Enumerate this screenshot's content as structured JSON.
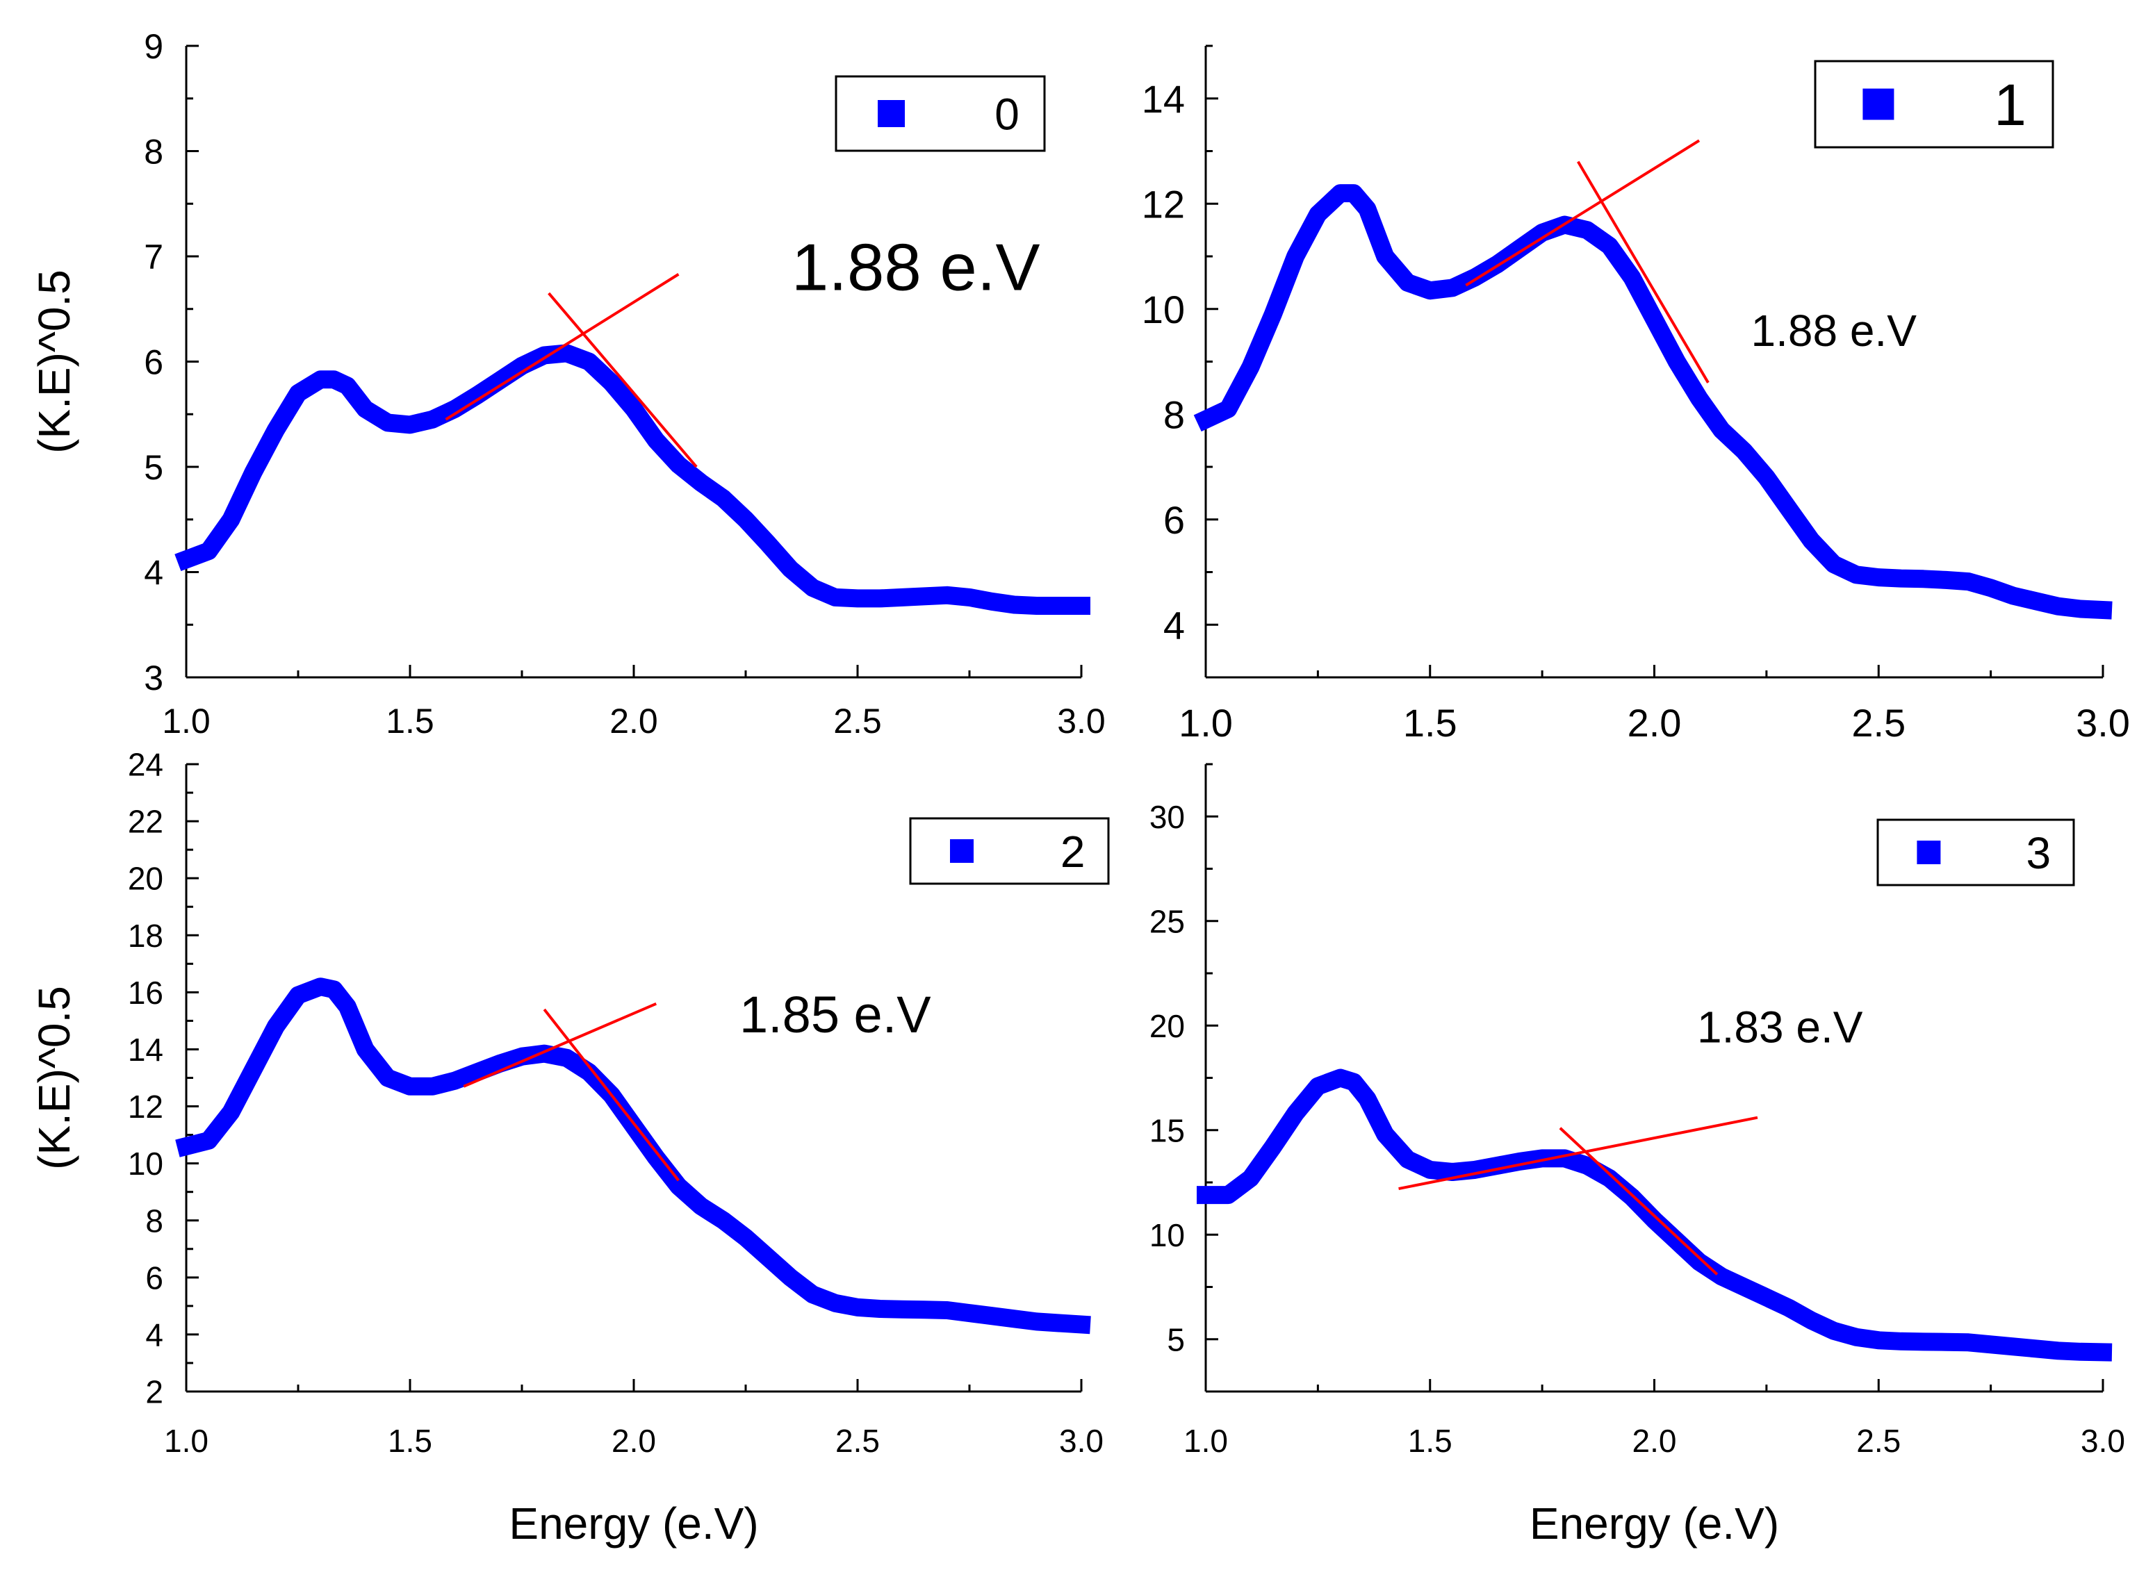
{
  "figure": {
    "colors": {
      "data": "#0000ff",
      "fit": "#ff0000",
      "axis": "#000000",
      "background": "#ffffff"
    },
    "marker_icon": "square-marker-icon"
  },
  "chart_data": [
    {
      "type": "line",
      "title": "",
      "xlabel": "",
      "ylabel": "(K.E)^0.5",
      "xlim": [
        1.0,
        3.0
      ],
      "ylim": [
        3,
        9
      ],
      "xticks": [
        1.0,
        1.5,
        2.0,
        2.5,
        3.0
      ],
      "xtick_labels": [
        "1.0",
        "1.5",
        "2.0",
        "2.5",
        "3.0"
      ],
      "yticks": [
        3,
        4,
        5,
        6,
        7,
        8,
        9
      ],
      "ytick_labels": [
        "3",
        "4",
        "5",
        "6",
        "7",
        "8",
        "9"
      ],
      "legend": {
        "label": "0",
        "position": "top-right"
      },
      "annotation": {
        "text": "1.88 e.V",
        "x": 2.63,
        "y": 6.68
      },
      "series": [
        {
          "name": "0",
          "x": [
            1.0,
            1.05,
            1.1,
            1.15,
            1.2,
            1.25,
            1.3,
            1.33,
            1.36,
            1.4,
            1.45,
            1.5,
            1.55,
            1.6,
            1.65,
            1.7,
            1.75,
            1.8,
            1.85,
            1.9,
            1.95,
            2.0,
            2.05,
            2.1,
            2.15,
            2.2,
            2.25,
            2.3,
            2.35,
            2.4,
            2.45,
            2.5,
            2.55,
            2.6,
            2.65,
            2.7,
            2.75,
            2.8,
            2.85,
            2.9,
            2.95,
            3.0
          ],
          "y": [
            4.12,
            4.2,
            4.5,
            4.95,
            5.35,
            5.7,
            5.83,
            5.83,
            5.77,
            5.55,
            5.42,
            5.4,
            5.45,
            5.55,
            5.68,
            5.82,
            5.96,
            6.06,
            6.08,
            6.0,
            5.8,
            5.55,
            5.25,
            5.02,
            4.85,
            4.7,
            4.5,
            4.27,
            4.03,
            3.85,
            3.76,
            3.75,
            3.75,
            3.76,
            3.77,
            3.78,
            3.76,
            3.72,
            3.69,
            3.68,
            3.68,
            3.68
          ]
        }
      ],
      "fit_lines": [
        {
          "x": [
            1.58,
            2.1
          ],
          "y": [
            5.45,
            6.83
          ]
        },
        {
          "x": [
            1.81,
            2.14
          ],
          "y": [
            6.65,
            5.0
          ]
        }
      ]
    },
    {
      "type": "line",
      "title": "",
      "xlabel": "",
      "ylabel": "",
      "xlim": [
        1.0,
        3.0
      ],
      "ylim": [
        3,
        15
      ],
      "xticks": [
        1.0,
        1.5,
        2.0,
        2.5,
        3.0
      ],
      "xtick_labels": [
        "1.0",
        "1.5",
        "2.0",
        "2.5",
        "3.0"
      ],
      "yticks": [
        4,
        6,
        8,
        10,
        12,
        14
      ],
      "ytick_labels": [
        "4",
        "6",
        "8",
        "10",
        "12",
        "14"
      ],
      "legend": {
        "label": "1",
        "position": "top-right"
      },
      "annotation": {
        "text": "1.88 e.V",
        "x": 2.4,
        "y": 9.3
      },
      "series": [
        {
          "name": "1",
          "x": [
            1.0,
            1.05,
            1.1,
            1.15,
            1.2,
            1.25,
            1.3,
            1.33,
            1.36,
            1.4,
            1.45,
            1.5,
            1.55,
            1.6,
            1.65,
            1.7,
            1.75,
            1.8,
            1.85,
            1.9,
            1.95,
            2.0,
            2.05,
            2.1,
            2.15,
            2.2,
            2.25,
            2.3,
            2.35,
            2.4,
            2.45,
            2.5,
            2.55,
            2.6,
            2.65,
            2.7,
            2.75,
            2.8,
            2.85,
            2.9,
            2.95,
            3.0
          ],
          "y": [
            7.9,
            8.1,
            8.9,
            9.9,
            11.0,
            11.8,
            12.2,
            12.2,
            11.9,
            11.0,
            10.5,
            10.35,
            10.4,
            10.6,
            10.85,
            11.15,
            11.45,
            11.6,
            11.5,
            11.2,
            10.6,
            9.8,
            9.0,
            8.3,
            7.7,
            7.3,
            6.8,
            6.2,
            5.6,
            5.15,
            4.95,
            4.9,
            4.88,
            4.87,
            4.85,
            4.82,
            4.7,
            4.55,
            4.45,
            4.35,
            4.3,
            4.28
          ]
        }
      ],
      "fit_lines": [
        {
          "x": [
            1.58,
            2.1
          ],
          "y": [
            10.45,
            13.2
          ]
        },
        {
          "x": [
            1.83,
            2.12
          ],
          "y": [
            12.8,
            8.6
          ]
        }
      ]
    },
    {
      "type": "line",
      "title": "",
      "xlabel": "Energy (e.V)",
      "ylabel": "(K.E)^0.5",
      "xlim": [
        1.0,
        3.0
      ],
      "ylim": [
        2,
        24
      ],
      "xticks": [
        1.0,
        1.5,
        2.0,
        2.5,
        3.0
      ],
      "xtick_labels": [
        "1.0",
        "1.5",
        "2.0",
        "2.5",
        "3.0"
      ],
      "yticks": [
        2,
        4,
        6,
        8,
        10,
        12,
        14,
        16,
        18,
        20,
        22,
        24
      ],
      "ytick_labels": [
        "2",
        "4",
        "6",
        "8",
        "10",
        "12",
        "14",
        "16",
        "18",
        "20",
        "22",
        "24"
      ],
      "legend": {
        "label": "2",
        "position": "top-right"
      },
      "annotation": {
        "text": "1.85 e.V",
        "x": 2.45,
        "y": 14.6
      },
      "series": [
        {
          "name": "2",
          "x": [
            1.0,
            1.05,
            1.1,
            1.15,
            1.2,
            1.25,
            1.3,
            1.33,
            1.36,
            1.4,
            1.45,
            1.5,
            1.55,
            1.6,
            1.65,
            1.7,
            1.75,
            1.8,
            1.85,
            1.9,
            1.95,
            2.0,
            2.05,
            2.1,
            2.15,
            2.2,
            2.25,
            2.3,
            2.35,
            2.4,
            2.45,
            2.5,
            2.55,
            2.6,
            2.65,
            2.7,
            2.75,
            2.8,
            2.85,
            2.9,
            2.95,
            3.0
          ],
          "y": [
            10.6,
            10.8,
            11.8,
            13.3,
            14.8,
            15.9,
            16.2,
            16.1,
            15.5,
            14.0,
            13.0,
            12.7,
            12.7,
            12.9,
            13.2,
            13.5,
            13.75,
            13.85,
            13.7,
            13.2,
            12.4,
            11.3,
            10.2,
            9.2,
            8.5,
            8.0,
            7.4,
            6.7,
            6.0,
            5.4,
            5.1,
            4.95,
            4.9,
            4.88,
            4.87,
            4.85,
            4.75,
            4.65,
            4.55,
            4.45,
            4.4,
            4.35
          ]
        }
      ],
      "fit_lines": [
        {
          "x": [
            1.62,
            2.05
          ],
          "y": [
            12.7,
            15.6
          ]
        },
        {
          "x": [
            1.8,
            2.1
          ],
          "y": [
            15.4,
            9.4
          ]
        }
      ]
    },
    {
      "type": "line",
      "title": "",
      "xlabel": "Energy (e.V)",
      "ylabel": "",
      "xlim": [
        1.0,
        3.0
      ],
      "ylim": [
        2.5,
        32.5
      ],
      "xticks": [
        1.0,
        1.5,
        2.0,
        2.5,
        3.0
      ],
      "xtick_labels": [
        "1.0",
        "1.5",
        "2.0",
        "2.5",
        "3.0"
      ],
      "yticks": [
        5,
        10,
        15,
        20,
        25,
        30
      ],
      "ytick_labels": [
        "5",
        "10",
        "15",
        "20",
        "25",
        "30"
      ],
      "legend": {
        "label": "3",
        "position": "top-right"
      },
      "annotation": {
        "text": "1.83 e.V",
        "x": 2.28,
        "y": 19.2
      },
      "series": [
        {
          "name": "3",
          "x": [
            1.0,
            1.05,
            1.1,
            1.15,
            1.2,
            1.25,
            1.3,
            1.33,
            1.36,
            1.4,
            1.45,
            1.5,
            1.55,
            1.6,
            1.65,
            1.7,
            1.75,
            1.8,
            1.85,
            1.9,
            1.95,
            2.0,
            2.05,
            2.1,
            2.15,
            2.2,
            2.25,
            2.3,
            2.35,
            2.4,
            2.45,
            2.5,
            2.55,
            2.6,
            2.65,
            2.7,
            2.75,
            2.8,
            2.85,
            2.9,
            2.95,
            3.0
          ],
          "y": [
            11.9,
            11.9,
            12.7,
            14.2,
            15.8,
            17.1,
            17.5,
            17.3,
            16.5,
            14.8,
            13.6,
            13.1,
            13.0,
            13.1,
            13.3,
            13.5,
            13.65,
            13.65,
            13.3,
            12.7,
            11.8,
            10.7,
            9.7,
            8.7,
            8.0,
            7.5,
            7.0,
            6.5,
            5.9,
            5.4,
            5.1,
            4.95,
            4.9,
            4.88,
            4.87,
            4.85,
            4.75,
            4.65,
            4.55,
            4.45,
            4.4,
            4.38
          ]
        }
      ],
      "fit_lines": [
        {
          "x": [
            1.43,
            2.23
          ],
          "y": [
            12.2,
            15.6
          ]
        },
        {
          "x": [
            1.79,
            2.14
          ],
          "y": [
            15.1,
            8.1
          ]
        }
      ]
    }
  ]
}
